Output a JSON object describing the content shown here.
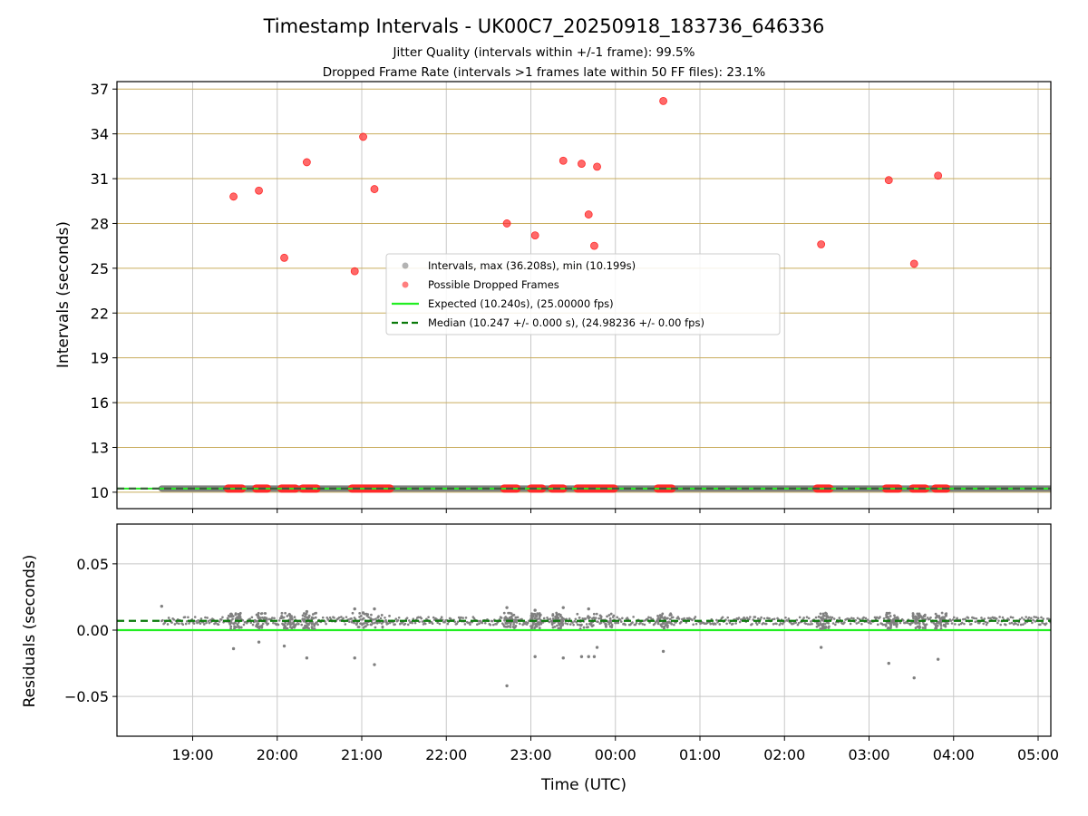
{
  "chart_data": {
    "type": "scatter",
    "title": "Timestamp Intervals - UK00C7_20250918_183736_646336",
    "subtitles": [
      "Jitter Quality (intervals within +/-1 frame): 99.5%",
      "Dropped Frame Rate (intervals >1 frames late within 50 FF files): 23.1%"
    ],
    "xlabel": "Time (UTC)",
    "x_ticks": [
      "19:00",
      "20:00",
      "21:00",
      "22:00",
      "23:00",
      "00:00",
      "01:00",
      "02:00",
      "03:00",
      "04:00",
      "05:00"
    ],
    "top_panel": {
      "ylabel": "Intervals (seconds)",
      "ylim": [
        8.9,
        37.5
      ],
      "y_ticks": [
        "10",
        "13",
        "16",
        "19",
        "22",
        "25",
        "28",
        "31",
        "34",
        "37"
      ],
      "grid": true,
      "legend_position": "center",
      "legend": [
        "Intervals, max (36.208s), min (10.199s)",
        "Possible Dropped Frames",
        "Expected (10.240s), (25.00000 fps)",
        "Median (10.247 +/- 0.000 s), (24.98236 +/- 0.00 fps)"
      ],
      "expected_interval": 10.24,
      "median_interval": 10.247,
      "dropped_frames": [
        {
          "t": "19:29",
          "v": 29.8
        },
        {
          "t": "19:47",
          "v": 30.2
        },
        {
          "t": "20:05",
          "v": 25.7
        },
        {
          "t": "20:21",
          "v": 32.1
        },
        {
          "t": "20:55",
          "v": 24.8
        },
        {
          "t": "21:01",
          "v": 33.8
        },
        {
          "t": "21:09",
          "v": 30.3
        },
        {
          "t": "22:43",
          "v": 28.0
        },
        {
          "t": "23:03",
          "v": 27.2
        },
        {
          "t": "23:23",
          "v": 32.2
        },
        {
          "t": "23:36",
          "v": 32.0
        },
        {
          "t": "23:41",
          "v": 28.6
        },
        {
          "t": "23:45",
          "v": 26.5
        },
        {
          "t": "23:47",
          "v": 31.8
        },
        {
          "t": "00:34",
          "v": 36.2
        },
        {
          "t": "02:26",
          "v": 26.6
        },
        {
          "t": "03:14",
          "v": 30.9
        },
        {
          "t": "03:32",
          "v": 25.3
        },
        {
          "t": "03:49",
          "v": 31.2
        }
      ],
      "dropped_frame_clusters": [
        [
          "19:25",
          "19:35"
        ],
        [
          "19:45",
          "19:53"
        ],
        [
          "20:03",
          "20:13"
        ],
        [
          "20:18",
          "20:28"
        ],
        [
          "20:53",
          "21:20"
        ],
        [
          "22:41",
          "22:50"
        ],
        [
          "23:00",
          "23:08"
        ],
        [
          "23:15",
          "23:23"
        ],
        [
          "23:33",
          "23:59"
        ],
        [
          "00:30",
          "00:40"
        ],
        [
          "02:23",
          "02:32"
        ],
        [
          "03:12",
          "03:21"
        ],
        [
          "03:31",
          "03:40"
        ],
        [
          "03:47",
          "03:55"
        ]
      ]
    },
    "bottom_panel": {
      "ylabel": "Residuals (seconds)",
      "ylim": [
        -0.08,
        0.08
      ],
      "y_ticks": [
        "0.05",
        "0.00",
        "−0.05"
      ],
      "grid": true,
      "expected_residual": 0.0,
      "median_residual": 0.007,
      "outliers": [
        {
          "t": "18:38",
          "v": 0.018
        },
        {
          "t": "19:29",
          "v": -0.014
        },
        {
          "t": "19:47",
          "v": -0.009
        },
        {
          "t": "20:05",
          "v": -0.012
        },
        {
          "t": "20:21",
          "v": -0.021
        },
        {
          "t": "20:21",
          "v": 0.014
        },
        {
          "t": "20:55",
          "v": -0.021
        },
        {
          "t": "20:55",
          "v": 0.016
        },
        {
          "t": "21:01",
          "v": 0.013
        },
        {
          "t": "21:09",
          "v": -0.026
        },
        {
          "t": "21:09",
          "v": 0.016
        },
        {
          "t": "22:43",
          "v": -0.042
        },
        {
          "t": "22:43",
          "v": 0.017
        },
        {
          "t": "23:03",
          "v": -0.02
        },
        {
          "t": "23:03",
          "v": 0.015
        },
        {
          "t": "23:23",
          "v": -0.021
        },
        {
          "t": "23:23",
          "v": 0.017
        },
        {
          "t": "23:36",
          "v": -0.02
        },
        {
          "t": "23:41",
          "v": -0.02
        },
        {
          "t": "23:41",
          "v": 0.016
        },
        {
          "t": "23:45",
          "v": -0.02
        },
        {
          "t": "23:47",
          "v": -0.013
        },
        {
          "t": "00:34",
          "v": -0.016
        },
        {
          "t": "02:26",
          "v": -0.013
        },
        {
          "t": "03:14",
          "v": -0.025
        },
        {
          "t": "03:32",
          "v": -0.036
        },
        {
          "t": "03:49",
          "v": -0.022
        }
      ]
    },
    "colors": {
      "intervals": "#808080",
      "dropped": "#ff2a2a",
      "expected": "#22ee22",
      "median": "#0a7a0a",
      "grid_top": "#c9ad5e",
      "grid_x": "#c8c8c8"
    }
  }
}
